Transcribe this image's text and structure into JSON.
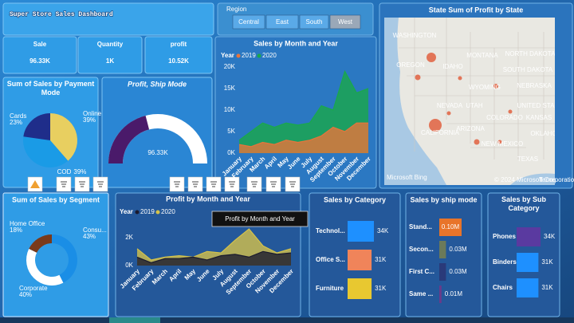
{
  "header": {
    "title": "Super Store Sales Dashboard"
  },
  "slicer": {
    "title": "Region",
    "options": [
      "Central",
      "East",
      "South",
      "West"
    ]
  },
  "kpis": [
    {
      "label": "Sale",
      "value": "96.33K"
    },
    {
      "label": "Quantity",
      "value": "1K"
    },
    {
      "label": "profit",
      "value": "10.52K"
    }
  ],
  "map": {
    "title": "State Sum of Profit by State",
    "labels": [
      "WASHINGTON",
      "MONTANA",
      "NORTH DAKOTA",
      "OREGON",
      "IDAHO",
      "SOUTH DAKOTA",
      "WYOMING",
      "NEBRASKA",
      "NEVADA",
      "UTAH",
      "UNITED STA",
      "COLORADO",
      "KANSAS",
      "CALIFORNIA",
      "ARIZONA",
      "OKLAHOMA",
      "NEW MEXICO",
      "TEXAS"
    ],
    "brand": "Microsoft Bing",
    "attribution": "© 2024 Microsoft Corporation",
    "terms": "Terms"
  },
  "gauge": {
    "title": "Profit, Ship Mode",
    "value": "96.33K"
  },
  "tooltip": "Profit by Month and Year",
  "chart_data": [
    {
      "type": "area",
      "title": "Sales by Month and Year",
      "legend_title": "Year",
      "categories": [
        "January",
        "February",
        "March",
        "April",
        "May",
        "June",
        "July",
        "August",
        "September",
        "October",
        "November",
        "December"
      ],
      "series": [
        {
          "name": "2020",
          "color": "#1aa84a",
          "values": [
            3,
            5,
            7,
            6,
            7,
            6.5,
            7,
            11,
            10,
            19,
            14,
            15
          ]
        },
        {
          "name": "2019",
          "color": "#e8743b",
          "values": [
            2,
            1.5,
            2.5,
            2,
            3,
            2.5,
            3,
            4,
            6,
            5,
            7,
            7
          ]
        }
      ],
      "ylim": [
        0,
        20
      ],
      "yticks": [
        {
          "value": 0,
          "label": "0K"
        },
        {
          "value": 5,
          "label": "5K"
        },
        {
          "value": 10,
          "label": "10K"
        },
        {
          "value": 15,
          "label": "15K"
        },
        {
          "value": 20,
          "label": "20K"
        }
      ]
    },
    {
      "type": "pie",
      "title": "Sum of Sales by Payment Mode",
      "categories": [
        "Online",
        "COD",
        "Cards"
      ],
      "values": [
        39,
        39,
        23
      ],
      "value_labels": [
        "39%",
        "39%",
        "23%"
      ],
      "colors": [
        "#e8cf60",
        "#1a9be6",
        "#1f2d8a"
      ]
    },
    {
      "type": "donut",
      "title": "Sum of Sales by Segment",
      "categories": [
        "Home Office",
        "Consu...",
        "Corporate"
      ],
      "values": [
        18,
        43,
        40
      ],
      "value_labels": [
        "18%",
        "43%",
        "40%"
      ],
      "colors": [
        "#7a3a1a",
        "#1a8ee6",
        "#ffffff"
      ]
    },
    {
      "type": "area",
      "title": "Profit by Month and Year",
      "legend_title": "Year",
      "categories": [
        "January",
        "February",
        "March",
        "April",
        "May",
        "June",
        "July",
        "August",
        "September",
        "October",
        "November",
        "December"
      ],
      "series": [
        {
          "name": "2020",
          "color": "#d4c24a",
          "values": [
            1.2,
            0.4,
            0.6,
            0.7,
            0.6,
            1.0,
            0.9,
            1.8,
            2.6,
            1.4,
            0.9,
            1.2
          ]
        },
        {
          "name": "2019",
          "color": "#1a1a2e",
          "values": [
            0.6,
            0.2,
            0.5,
            0.5,
            0.6,
            0.4,
            0.7,
            0.8,
            0.6,
            1.0,
            0.8,
            0.9
          ]
        }
      ],
      "ylim": [
        0,
        3
      ],
      "yticks": [
        {
          "value": 0,
          "label": "0K"
        },
        {
          "value": 2,
          "label": "2K"
        }
      ]
    },
    {
      "type": "hbar",
      "title": "Sales by Category",
      "categories": [
        "Technol...",
        "Office S...",
        "Furniture"
      ],
      "values": [
        34,
        31,
        31
      ],
      "value_labels": [
        "34K",
        "31K",
        "31K"
      ],
      "colors": [
        "#1e90ff",
        "#f0845a",
        "#e8c830"
      ]
    },
    {
      "type": "hbar",
      "title": "Sales by ship mode",
      "categories": [
        "Stand...",
        "Secon...",
        "First C...",
        "Same ..."
      ],
      "values": [
        0.1,
        0.03,
        0.03,
        0.01
      ],
      "value_labels": [
        "0.10M",
        "0.03M",
        "0.03M",
        "0.01M"
      ],
      "colors": [
        "#e8742a",
        "#6b7a5a",
        "#2a3a7a",
        "#6a3a8a"
      ]
    },
    {
      "type": "hbar",
      "title": "Sales by Sub Category",
      "categories": [
        "Phones",
        "Binders",
        "Chairs"
      ],
      "values": [
        34,
        31,
        31
      ],
      "value_labels": [
        "34K",
        "31K",
        "31K"
      ],
      "colors": [
        "#5a3aa0",
        "#1e90ff",
        "#1e90ff"
      ]
    }
  ]
}
